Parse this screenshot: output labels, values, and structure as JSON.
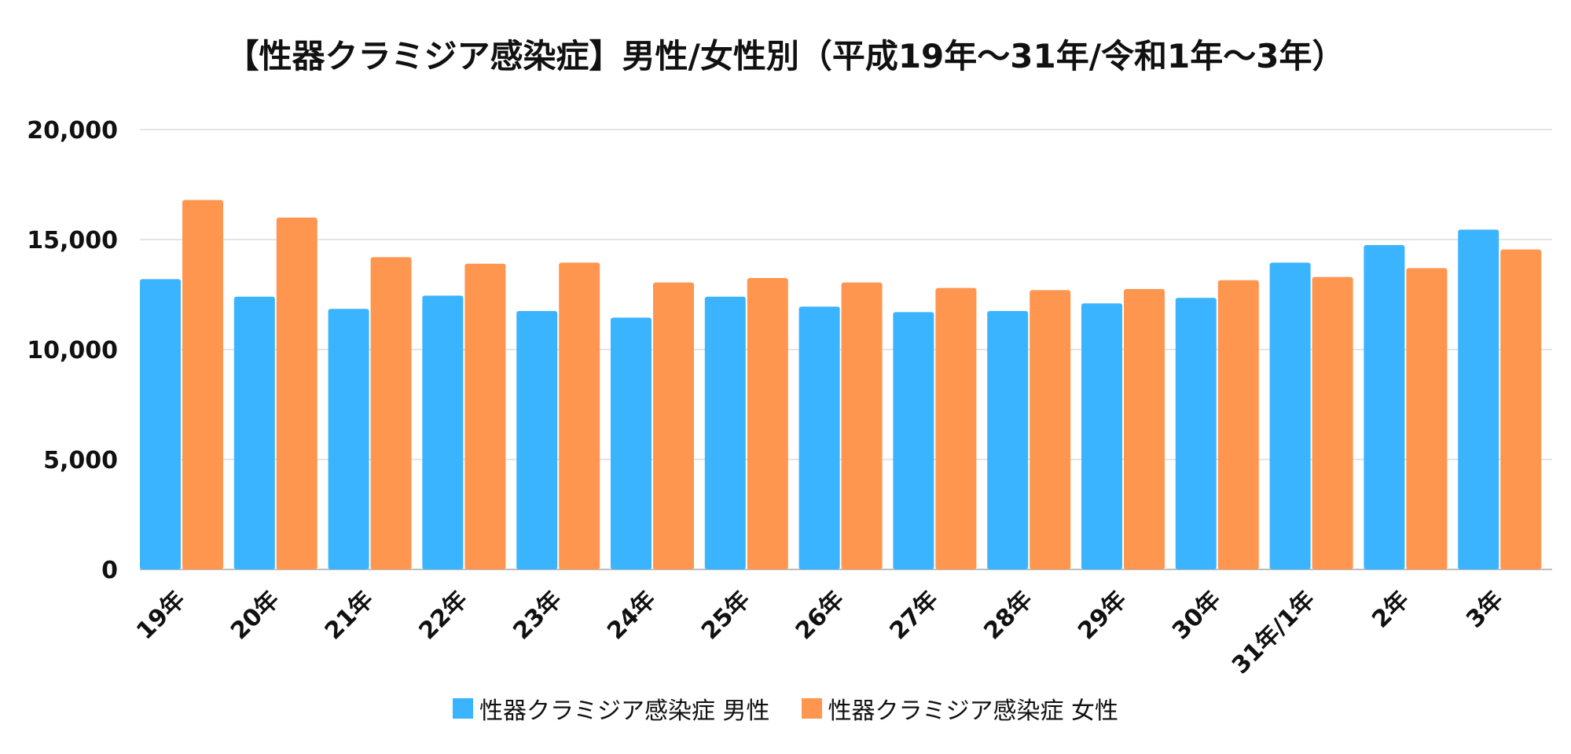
{
  "chart_data": {
    "type": "bar",
    "title": "【性器クラミジア感染症】男性/女性別（平成19年～31年/令和1年～3年）",
    "categories": [
      "19年",
      "20年",
      "21年",
      "22年",
      "23年",
      "24年",
      "25年",
      "26年",
      "27年",
      "28年",
      "29年",
      "30年",
      "31年/1年",
      "2年",
      "3年"
    ],
    "series": [
      {
        "name": "性器クラミジア感染症 男性",
        "color": "#3BB4FF",
        "values": [
          13200,
          12400,
          11850,
          12450,
          11750,
          11450,
          12400,
          11950,
          11700,
          11750,
          12100,
          12350,
          13950,
          14750,
          15450
        ]
      },
      {
        "name": "性器クラミジア感染症 女性",
        "color": "#FF9650",
        "values": [
          16800,
          16000,
          14200,
          13900,
          13950,
          13050,
          13250,
          13050,
          12800,
          12700,
          12750,
          13150,
          13300,
          13700,
          14550
        ]
      }
    ],
    "ylim": [
      0,
      20000
    ],
    "yticks": [
      "0",
      "5,000",
      "10,000",
      "15,000",
      "20,000"
    ],
    "ytick_values": [
      0,
      5000,
      10000,
      15000,
      20000
    ],
    "grid": true,
    "legend_position": "bottom"
  }
}
